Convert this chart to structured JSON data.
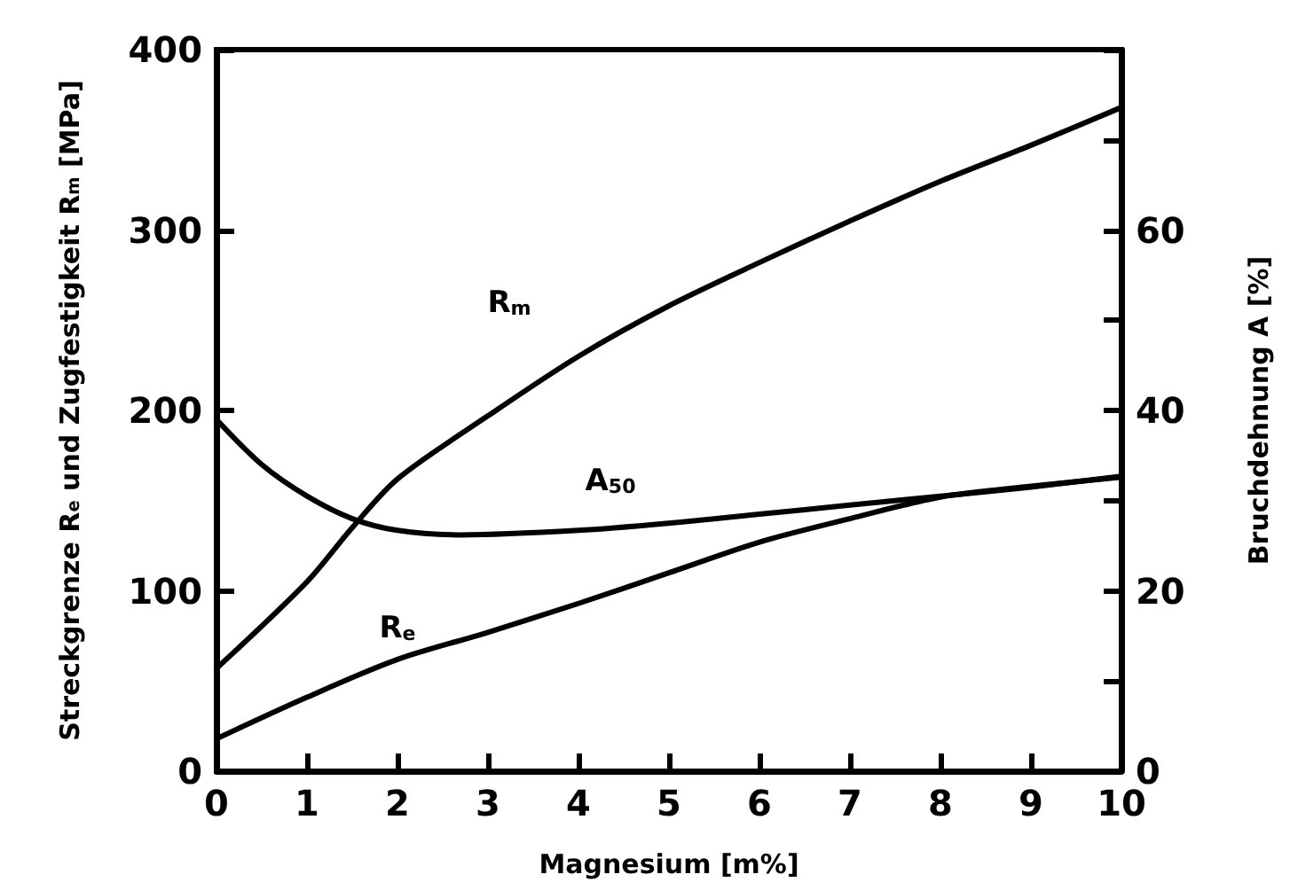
{
  "chart_data": {
    "type": "line",
    "xlabel": "Magnesium [m%]",
    "ylabel": "Streckgrenze R$_{e}$ und Zugfestigkeit R$_{m}$ [MPa]",
    "y2label": "Bruchdehnung A [%]",
    "xlim": [
      0,
      10
    ],
    "xticks": [
      0,
      1,
      2,
      3,
      4,
      5,
      6,
      7,
      8,
      9,
      10
    ],
    "ylim": [
      0,
      400
    ],
    "yticks": [
      0,
      100,
      200,
      300,
      400
    ],
    "y2lim": [
      0,
      80
    ],
    "y2ticks": [
      0,
      {
        "value": 10,
        "label": null
      },
      20,
      {
        "value": 30,
        "label": null
      },
      40,
      {
        "value": 50,
        "label": null
      },
      60,
      {
        "value": 70,
        "label": null
      },
      {
        "value": 80,
        "label": null
      }
    ],
    "grid": false,
    "marker": "none",
    "line_style": "solid",
    "series": [
      {
        "name": "R$_{m}$",
        "color": "#000000",
        "x": [
          0,
          1,
          1.5,
          2,
          3,
          4,
          5,
          6,
          7,
          8,
          9,
          10
        ],
        "values": [
          57,
          105,
          135,
          162,
          197,
          230,
          258,
          282,
          305,
          327,
          347,
          368
        ]
      },
      {
        "name": "R$_{e}$",
        "color": "#000000",
        "x": [
          0,
          1,
          2,
          3,
          4,
          5,
          6,
          7,
          8,
          9,
          10
        ],
        "values": [
          18,
          41,
          62,
          77,
          93,
          110,
          127,
          140,
          152,
          158,
          163
        ]
      },
      {
        "name": "A$_{50}$",
        "color": "#000000",
        "axis": "y2",
        "x": [
          0,
          0.5,
          1,
          1.5,
          2,
          2.7,
          4,
          5,
          6,
          7,
          8,
          9,
          10
        ],
        "values": [
          39,
          34,
          30.5,
          28,
          26.7,
          26.2,
          26.7,
          27.5,
          28.5,
          29.5,
          30.5,
          31.5,
          32.7
        ]
      }
    ]
  }
}
